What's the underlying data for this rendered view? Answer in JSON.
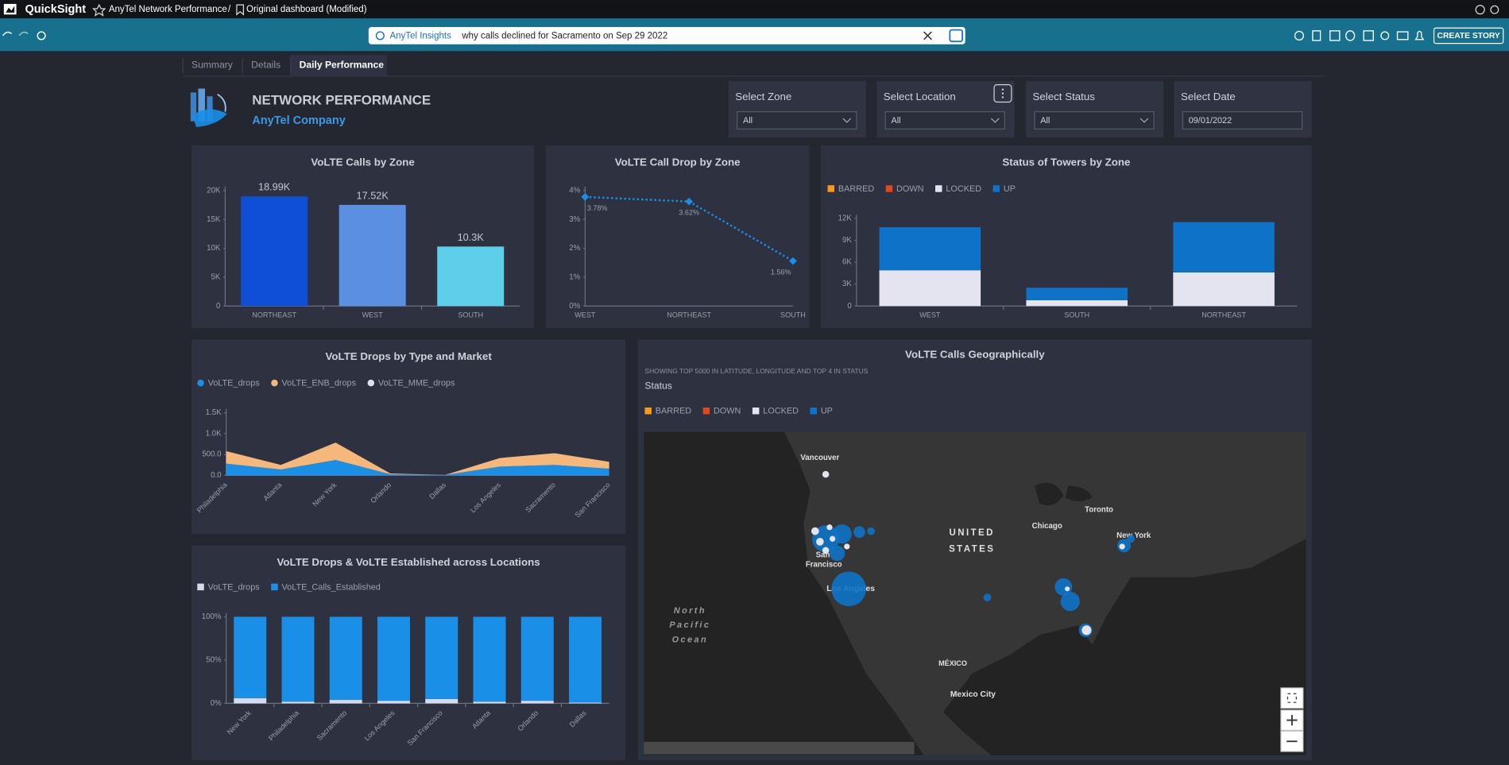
{
  "top_bar": {
    "app": "QuickSight",
    "dashboard": "AnyTel Network Performance",
    "separator": "/",
    "sheet": "Original dashboard (Modified)"
  },
  "toolbar": {
    "topic": "AnyTel Insights",
    "query": "why calls declined for Sacramento on Sep 29 2022",
    "button": "CREATE STORY"
  },
  "tabs": [
    "Summary",
    "Details",
    "Daily Performance"
  ],
  "active_tab": 2,
  "header": {
    "title": "NETWORK PERFORMANCE",
    "subtitle": "AnyTel Company"
  },
  "filters": [
    {
      "label": "Select Zone",
      "value": "All"
    },
    {
      "label": "Select Location",
      "value": "All"
    },
    {
      "label": "Select Status",
      "value": "All"
    },
    {
      "label": "Select Date",
      "value": "09/01/2022"
    }
  ],
  "chart_data": [
    {
      "type": "bar",
      "title": "VoLTE Calls by Zone",
      "categories": [
        "NORTHEAST",
        "WEST",
        "SOUTH"
      ],
      "values": [
        18990,
        17520,
        10300
      ],
      "value_labels": [
        "18.99K",
        "17.52K",
        "10.3K"
      ],
      "colors": [
        "#0f4fd8",
        "#5b8fe2",
        "#5dcfea"
      ],
      "ylim": [
        0,
        20000
      ],
      "yticks": [
        0,
        {
          "value": 5000,
          "label": "5K"
        },
        {
          "value": 10000,
          "label": "10K"
        },
        {
          "value": 15000,
          "label": "15K"
        },
        {
          "value": 20000,
          "label": "20K"
        }
      ]
    },
    {
      "type": "line",
      "title": "VoLTE Call Drop by Zone",
      "categories": [
        "WEST",
        "NORTHEAST",
        "SOUTH"
      ],
      "values": [
        3.78,
        3.62,
        1.56
      ],
      "value_labels": [
        "3.78%",
        "3.62%",
        "1.56%"
      ],
      "color": "#1a8fe8",
      "ylim": [
        0,
        4
      ],
      "yticks": [
        {
          "value": 0,
          "label": "0%"
        },
        {
          "value": 1,
          "label": "1%"
        },
        {
          "value": 2,
          "label": "2%"
        },
        {
          "value": 3,
          "label": "3%"
        },
        {
          "value": 4,
          "label": "4%"
        }
      ]
    },
    {
      "type": "stacked_bar",
      "title": "Status of Towers by Zone",
      "legend_marker": "square",
      "categories": [
        "WEST",
        "SOUTH",
        "NORTHEAST"
      ],
      "series": [
        {
          "name": "BARRED",
          "color": "#f89a1c",
          "values": [
            0,
            0,
            0
          ]
        },
        {
          "name": "DOWN",
          "color": "#e0491c",
          "values": [
            0,
            0,
            0
          ]
        },
        {
          "name": "LOCKED",
          "color": "#e4e4f0",
          "values": [
            4900,
            800,
            4600
          ]
        },
        {
          "name": "UP",
          "color": "#0e73c8",
          "values": [
            5900,
            1700,
            6900
          ]
        }
      ],
      "ylim": [
        0,
        12000
      ],
      "yticks": [
        0,
        {
          "value": 3000,
          "label": "3K"
        },
        {
          "value": 6000,
          "label": "6K"
        },
        {
          "value": 9000,
          "label": "9K"
        },
        {
          "value": 12000,
          "label": "12K"
        }
      ]
    },
    {
      "type": "stacked_area",
      "title": "VoLTE Drops by Type and Market",
      "legend_marker": "circle",
      "categories": [
        "Philadelphia",
        "Atlanta",
        "New York",
        "Orlando",
        "Dallas",
        "Los Angeles",
        "Sacramento",
        "San Francisco"
      ],
      "series": [
        {
          "name": "VoLTE_drops",
          "color": "#1a8fe8",
          "values": [
            280,
            140,
            370,
            25,
            10,
            210,
            250,
            160
          ]
        },
        {
          "name": "VoLTE_ENB_drops",
          "color": "#f5b87a",
          "values": [
            300,
            110,
            415,
            20,
            0,
            205,
            280,
            165
          ]
        },
        {
          "name": "VoLTE_MME_drops",
          "color": "#e0e0ec",
          "values": [
            0,
            0,
            0,
            0,
            0,
            0,
            0,
            0
          ]
        }
      ],
      "ylim": [
        0,
        1500
      ],
      "yticks": [
        {
          "value": 0,
          "label": "0.0"
        },
        {
          "value": 500,
          "label": "500.0"
        },
        {
          "value": 1000,
          "label": "1.0K"
        },
        {
          "value": 1500,
          "label": "1.5K"
        }
      ]
    },
    {
      "type": "stacked_bar",
      "title": "VoLTE Drops & VoLTE Established across Locations",
      "legend_marker": "square",
      "categories": [
        "New York",
        "Philadelphia",
        "Sacramento",
        "Los Angeles",
        "San Francisco",
        "Atlanta",
        "Orlando",
        "Dallas"
      ],
      "series": [
        {
          "name": "VoLTE_drops",
          "color": "#d8d8ee",
          "values": [
            6,
            2,
            4,
            3,
            5,
            2,
            3,
            1
          ]
        },
        {
          "name": "VoLTE_Calls_Established",
          "color": "#1a8fe8",
          "values": [
            94,
            98,
            96,
            97,
            95,
            98,
            97,
            99
          ]
        }
      ],
      "ylim": [
        0,
        100
      ],
      "yticks": [
        {
          "value": 0,
          "label": "0%"
        },
        {
          "value": 50,
          "label": "50%"
        },
        {
          "value": 100,
          "label": "100%"
        }
      ]
    }
  ],
  "map": {
    "title": "VoLTE Calls Geographically",
    "subtitle": "SHOWING TOP 5000 IN LATITUDE, LONGITUDE AND TOP 4 IN STATUS",
    "legend_title": "Status",
    "legend": [
      {
        "name": "BARRED",
        "color": "#f89a1c"
      },
      {
        "name": "DOWN",
        "color": "#e0491c"
      },
      {
        "name": "LOCKED",
        "color": "#e4e4f0"
      },
      {
        "name": "UP",
        "color": "#0e73c8"
      }
    ],
    "places": [
      "Vancouver",
      "Toronto",
      "Chicago",
      "UNITED",
      "STATES",
      "New York",
      "San",
      "Francisco",
      "Los Angeles",
      "North",
      "Pacific",
      "Ocean",
      "MÉXICO",
      "Mexico City"
    ]
  }
}
